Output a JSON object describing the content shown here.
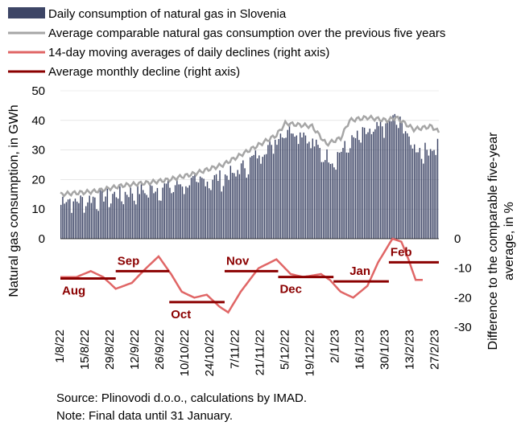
{
  "chart_data": {
    "type": "bar+line",
    "legend": [
      {
        "name": "Daily consumption of natural gas in Slovenia",
        "kind": "bar",
        "color": "#3d4566"
      },
      {
        "name": "Average comparable natural gas consumption over the previous five years",
        "kind": "line",
        "color": "#a6a6a6"
      },
      {
        "name": "14-day moving averages of daily declines (right axis)",
        "kind": "line",
        "color": "#e06666"
      },
      {
        "name": "Average monthly decline (right axis)",
        "kind": "line",
        "color": "#8b0000"
      }
    ],
    "x_tick_labels": [
      "1/8/22",
      "15/8/22",
      "29/8/22",
      "12/9/22",
      "26/9/22",
      "10/10/22",
      "24/10/22",
      "7/11/22",
      "21/11/22",
      "5/12/22",
      "19/12/22",
      "2/1/23",
      "16/1/23",
      "30/1/23",
      "13/2/23",
      "27/2/23"
    ],
    "y_left": {
      "label": "Natural gas consumption, in GWh",
      "min": 0,
      "max": 50,
      "ticks": [
        0,
        10,
        20,
        30,
        40,
        50
      ]
    },
    "y_right": {
      "label": "Difference to the comparable five-year average, in %",
      "min": -30,
      "max": 0,
      "ticks": [
        0,
        -10,
        -20,
        -30
      ]
    },
    "date_range": {
      "start": "2022-08-01",
      "end": "2023-03-01"
    },
    "daily_consumption_anchors": [
      [
        "2022-08-01",
        14
      ],
      [
        "2022-08-10",
        13
      ],
      [
        "2022-08-20",
        14
      ],
      [
        "2022-08-31",
        15
      ],
      [
        "2022-09-10",
        16
      ],
      [
        "2022-09-20",
        17
      ],
      [
        "2022-09-30",
        18
      ],
      [
        "2022-10-10",
        19
      ],
      [
        "2022-10-20",
        20
      ],
      [
        "2022-10-31",
        21
      ],
      [
        "2022-11-10",
        24
      ],
      [
        "2022-11-20",
        29
      ],
      [
        "2022-11-30",
        34
      ],
      [
        "2022-12-05",
        38
      ],
      [
        "2022-12-15",
        36
      ],
      [
        "2022-12-24",
        30
      ],
      [
        "2022-12-31",
        27
      ],
      [
        "2023-01-05",
        30
      ],
      [
        "2023-01-15",
        35
      ],
      [
        "2023-01-25",
        37
      ],
      [
        "2023-02-01",
        40
      ],
      [
        "2023-02-05",
        41
      ],
      [
        "2023-02-10",
        37
      ],
      [
        "2023-02-15",
        31
      ],
      [
        "2023-02-22",
        30
      ],
      [
        "2023-03-01",
        33
      ]
    ],
    "five_year_avg_anchors": [
      [
        "2022-08-01",
        15
      ],
      [
        "2022-08-20",
        16
      ],
      [
        "2022-09-05",
        18
      ],
      [
        "2022-09-20",
        19
      ],
      [
        "2022-10-01",
        20
      ],
      [
        "2022-10-15",
        22
      ],
      [
        "2022-10-31",
        25
      ],
      [
        "2022-11-15",
        30
      ],
      [
        "2022-11-30",
        35
      ],
      [
        "2022-12-05",
        39
      ],
      [
        "2022-12-20",
        38
      ],
      [
        "2022-12-28",
        32
      ],
      [
        "2023-01-05",
        34
      ],
      [
        "2023-01-10",
        40
      ],
      [
        "2023-01-20",
        41
      ],
      [
        "2023-01-31",
        40
      ],
      [
        "2023-02-05",
        41
      ],
      [
        "2023-02-15",
        37
      ],
      [
        "2023-02-25",
        38
      ],
      [
        "2023-03-01",
        36
      ]
    ],
    "moving_avg_decline_anchors": [
      [
        "2022-08-01",
        -13
      ],
      [
        "2022-08-10",
        -13
      ],
      [
        "2022-08-18",
        -11
      ],
      [
        "2022-08-25",
        -13
      ],
      [
        "2022-09-01",
        -17
      ],
      [
        "2022-09-10",
        -15
      ],
      [
        "2022-09-18",
        -10
      ],
      [
        "2022-09-25",
        -6
      ],
      [
        "2022-10-02",
        -12
      ],
      [
        "2022-10-08",
        -18
      ],
      [
        "2022-10-15",
        -20
      ],
      [
        "2022-10-22",
        -19
      ],
      [
        "2022-10-29",
        -23
      ],
      [
        "2022-11-03",
        -25
      ],
      [
        "2022-11-10",
        -18
      ],
      [
        "2022-11-20",
        -10
      ],
      [
        "2022-11-30",
        -7
      ],
      [
        "2022-12-08",
        -12
      ],
      [
        "2022-12-15",
        -13
      ],
      [
        "2022-12-25",
        -12
      ],
      [
        "2022-12-30",
        -14
      ],
      [
        "2023-01-05",
        -18
      ],
      [
        "2023-01-12",
        -20
      ],
      [
        "2023-01-20",
        -16
      ],
      [
        "2023-01-26",
        -8
      ],
      [
        "2023-01-31",
        -3
      ],
      [
        "2023-02-03",
        0
      ],
      [
        "2023-02-08",
        -1
      ],
      [
        "2023-02-12",
        -7
      ],
      [
        "2023-02-16",
        -14
      ],
      [
        "2023-02-20",
        -14
      ]
    ],
    "monthly_average_decline": [
      {
        "month": "Aug",
        "value": -13.5,
        "start": "2022-08-01",
        "end": "2022-08-31"
      },
      {
        "month": "Sep",
        "value": -11,
        "start": "2022-09-01",
        "end": "2022-09-30"
      },
      {
        "month": "Oct",
        "value": -21.5,
        "start": "2022-10-01",
        "end": "2022-10-31"
      },
      {
        "month": "Nov",
        "value": -11,
        "start": "2022-11-01",
        "end": "2022-11-30"
      },
      {
        "month": "Dec",
        "value": -13,
        "start": "2022-12-01",
        "end": "2022-12-31"
      },
      {
        "month": "Jan",
        "value": -14.5,
        "start": "2023-01-01",
        "end": "2023-01-31"
      },
      {
        "month": "Feb",
        "value": -8,
        "start": "2023-02-01",
        "end": "2023-02-28"
      }
    ]
  },
  "notes": {
    "source": "Source: Plinovodi d.o.o., calculations by IMAD.",
    "note": "Note: Final data until 31 January."
  }
}
